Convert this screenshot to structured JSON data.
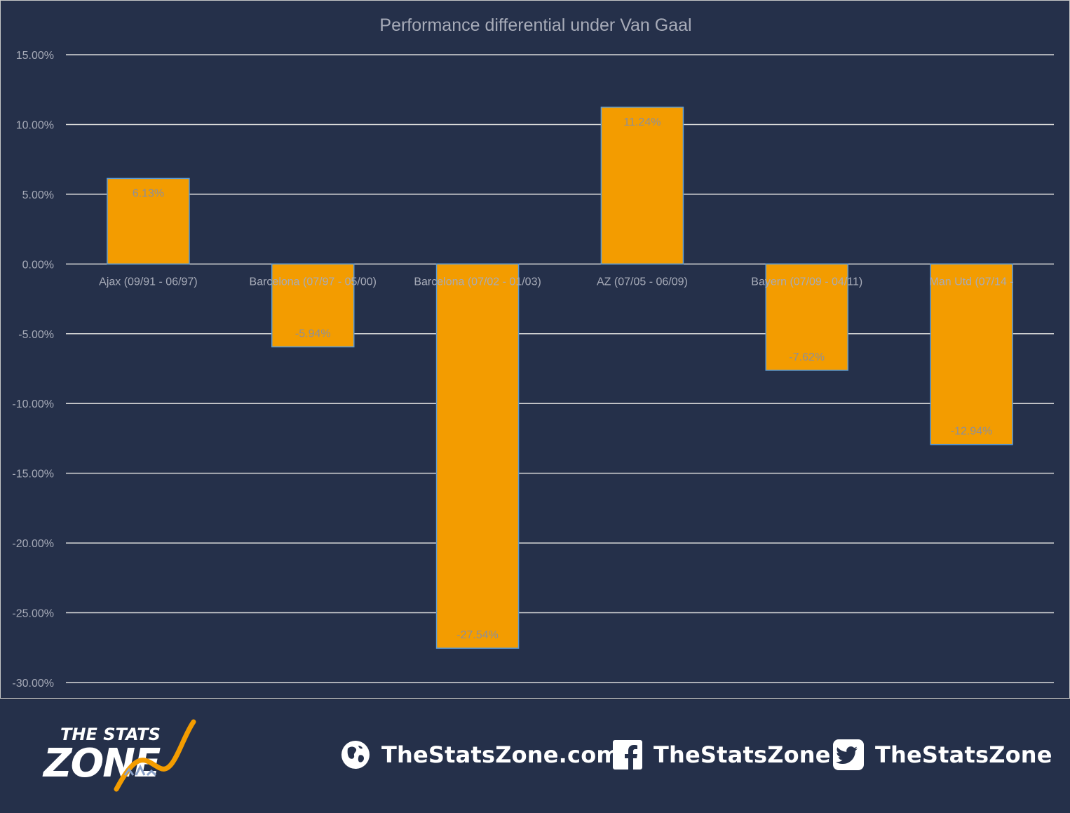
{
  "chart_data": {
    "type": "bar",
    "title": "Performance differential under Van Gaal",
    "categories": [
      "Ajax (09/91 - 06/97)",
      "Barcelona (07/97 - 05/00)",
      "Barcelona (07/02 - 01/03)",
      "AZ (07/05 - 06/09)",
      "Bayern (07/09 - 04/11)",
      "Man Utd (07/14 -"
    ],
    "values": [
      6.13,
      -5.94,
      -27.54,
      11.24,
      -7.62,
      -12.94
    ],
    "data_labels": [
      "6.13%",
      "-5.94%",
      "-27.54%",
      "11.24%",
      "-7.62%",
      "-12.94%"
    ],
    "ylim": [
      -30,
      15
    ],
    "yticks": [
      15,
      10,
      5,
      0,
      -5,
      -10,
      -15,
      -20,
      -25,
      -30
    ],
    "ytick_labels": [
      "15.00%",
      "10.00%",
      "5.00%",
      "0.00%",
      "-5.00%",
      "-10.00%",
      "-15.00%",
      "-20.00%",
      "-25.00%",
      "-30.00%"
    ],
    "grid": true,
    "bar_color": "#f39c00",
    "bar_border_color": "#5b9bd5",
    "background": "#25304a"
  },
  "footer": {
    "logo_line1": "THE STATS",
    "logo_line2": "ZONE",
    "website": "TheStatsZone.com",
    "facebook": "TheStatsZone",
    "twitter": "TheStatsZone",
    "website_icon": "globe-icon",
    "facebook_icon": "facebook-icon",
    "twitter_icon": "twitter-icon"
  }
}
